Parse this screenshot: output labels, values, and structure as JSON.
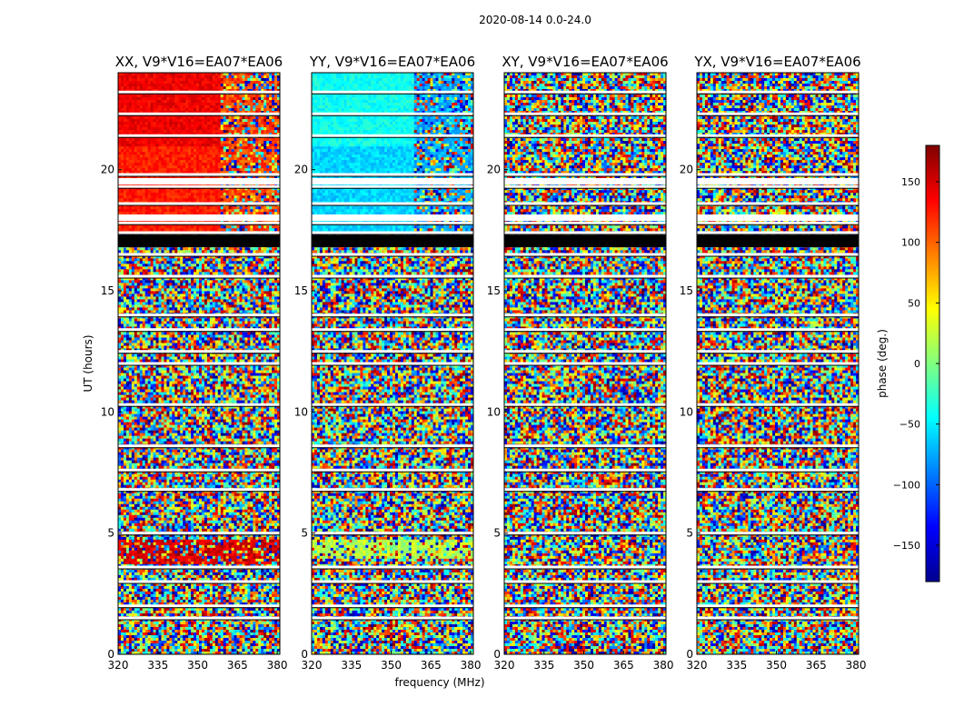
{
  "suptitle": "2020-08-14 0.0-24.0",
  "chart_data": {
    "type": "heatmap",
    "title": "2020-08-14 0.0-24.0",
    "xlabel": "frequency (MHz)",
    "ylabel": "UT (hours)",
    "xlim": [
      320,
      381
    ],
    "ylim": [
      0,
      24
    ],
    "xticks": [
      320,
      335,
      350,
      365,
      380
    ],
    "yticks": [
      0,
      5,
      10,
      15,
      20
    ],
    "grid": false,
    "panels": [
      {
        "title": "XX, V9*V16=EA07*EA06",
        "polarization": "XX",
        "coherent_phase_deg": [
          140,
          125,
          110
        ]
      },
      {
        "title": "YY, V9*V16=EA07*EA06",
        "polarization": "YY",
        "coherent_phase_deg": [
          -40,
          -60,
          -75
        ]
      },
      {
        "title": "XY, V9*V16=EA07*EA06",
        "polarization": "XY",
        "coherent_phase_deg": null
      },
      {
        "title": "YX, V9*V16=EA07*EA06",
        "polarization": "YX",
        "coherent_phase_deg": null
      }
    ],
    "colorbar": {
      "label": "phase (deg.)",
      "range": [
        -180,
        180
      ],
      "ticks": [
        150,
        100,
        50,
        0,
        -50,
        -100,
        -150
      ],
      "tick_labels": [
        "150",
        "100",
        "50",
        "0",
        "−50",
        "−100",
        "−150"
      ],
      "colormap": "jet"
    },
    "flagged_band_ut": [
      16.8,
      17.3
    ],
    "blank_rows_ut": [
      1.5,
      2.0,
      3.0,
      3.6,
      5.0,
      6.8,
      7.6,
      8.6,
      10.3,
      12.0,
      12.5,
      13.4,
      14.0,
      15.6,
      16.5,
      17.4,
      17.8,
      18.6,
      19.3,
      19.8,
      21.4,
      22.3,
      23.2
    ]
  }
}
